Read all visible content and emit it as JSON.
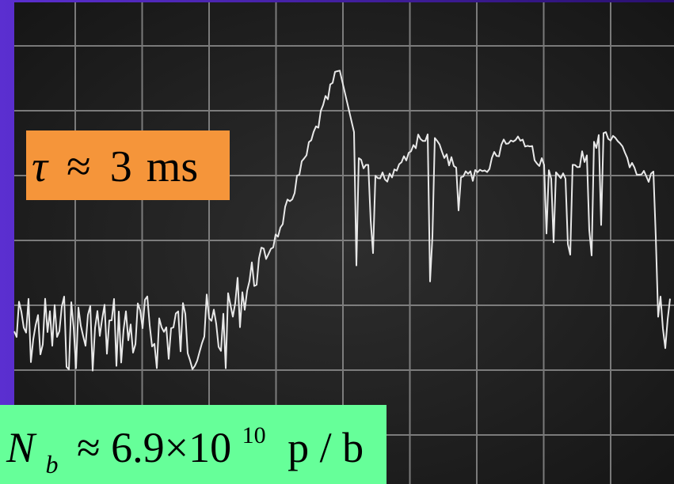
{
  "labels": {
    "decay_time": {
      "symbol": "τ",
      "relation": "≈",
      "value": "3",
      "unit": "ms"
    },
    "bunch_intensity": {
      "symbol": "N",
      "subscript": "b",
      "relation": "≈",
      "mantissa": "6.9×10",
      "exponent": "10",
      "unit": "p / b"
    }
  }
}
